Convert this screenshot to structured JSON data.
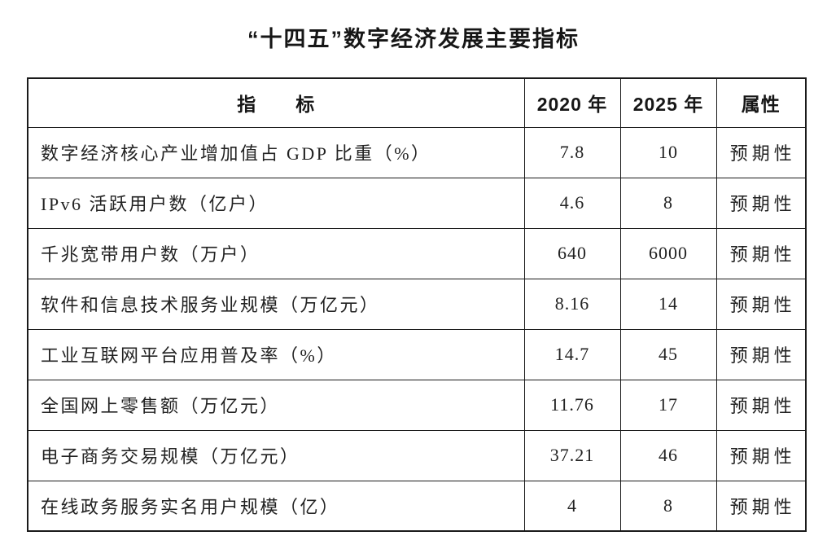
{
  "title": "“十四五”数字经济发展主要指标",
  "table": {
    "headers": {
      "indicator": "指　　标",
      "y2020": "2020 年",
      "y2025": "2025 年",
      "attribute": "属性"
    },
    "rows": [
      {
        "indicator": "数字经济核心产业增加值占 GDP 比重（%）",
        "y2020": "7.8",
        "y2025": "10",
        "attribute": "预期性"
      },
      {
        "indicator": "IPv6 活跃用户数（亿户）",
        "y2020": "4.6",
        "y2025": "8",
        "attribute": "预期性"
      },
      {
        "indicator": "千兆宽带用户数（万户）",
        "y2020": "640",
        "y2025": "6000",
        "attribute": "预期性"
      },
      {
        "indicator": "软件和信息技术服务业规模（万亿元）",
        "y2020": "8.16",
        "y2025": "14",
        "attribute": "预期性"
      },
      {
        "indicator": "工业互联网平台应用普及率（%）",
        "y2020": "14.7",
        "y2025": "45",
        "attribute": "预期性"
      },
      {
        "indicator": "全国网上零售额（万亿元）",
        "y2020": "11.76",
        "y2025": "17",
        "attribute": "预期性"
      },
      {
        "indicator": "电子商务交易规模（万亿元）",
        "y2020": "37.21",
        "y2025": "46",
        "attribute": "预期性"
      },
      {
        "indicator": "在线政务服务实名用户规模（亿）",
        "y2020": "4",
        "y2025": "8",
        "attribute": "预期性"
      }
    ]
  }
}
